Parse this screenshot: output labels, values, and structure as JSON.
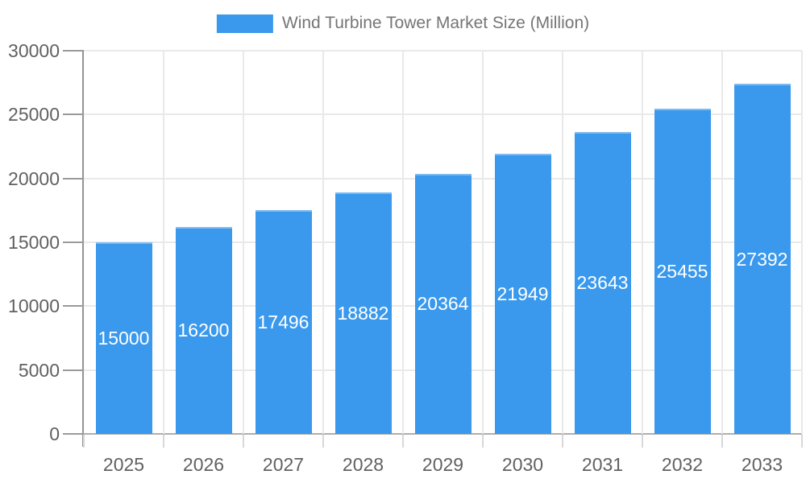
{
  "chart_data": {
    "type": "bar",
    "title": "Wind Turbine Tower Market Size (Million)",
    "legend": {
      "position": "top",
      "label": "Wind Turbine Tower Market Size (Million)"
    },
    "categories": [
      "2025",
      "2026",
      "2027",
      "2028",
      "2029",
      "2030",
      "2031",
      "2032",
      "2033"
    ],
    "series": [
      {
        "name": "Wind Turbine Tower Market Size (Million)",
        "values": [
          15000,
          16200,
          17496,
          18882,
          20364,
          21949,
          23643,
          25455,
          27392
        ]
      }
    ],
    "xlabel": "",
    "ylabel": "",
    "ylim": [
      0,
      30000
    ],
    "yticks": [
      0,
      5000,
      10000,
      15000,
      20000,
      25000,
      30000
    ],
    "grid": true,
    "value_labels_shown": true,
    "colors": {
      "bar_fill": "#3A99EC",
      "bar_top_edge": "#7EBBF2",
      "value_label_text": "#ffffff",
      "axis_tick_text": "#616161",
      "legend_text": "#757575",
      "y_axis_line": "#949494",
      "x_axis_line": "#aeaeae",
      "y_tick_mark": "#9a9a9a",
      "x_tick_mark": "#d8d8d8",
      "gridline": "#e9e9e9",
      "background": "#ffffff"
    }
  }
}
